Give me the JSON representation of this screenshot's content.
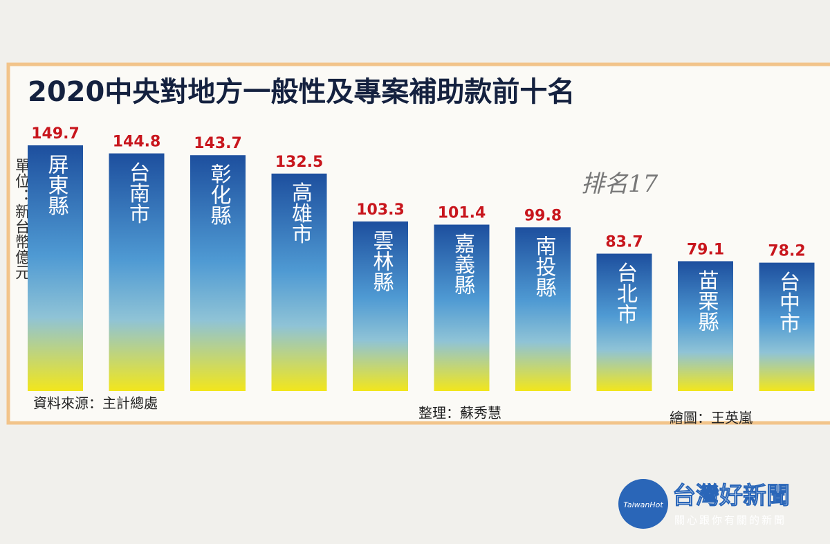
{
  "chart_data": {
    "type": "bar",
    "title": "2020中央對地方一般性及專案補助款前十名",
    "unit_label": "單位：新台幣億元",
    "categories": [
      "屏東縣",
      "台南市",
      "彰化縣",
      "高雄市",
      "雲林縣",
      "嘉義縣",
      "南投縣",
      "台北市",
      "苗栗縣",
      "台中市"
    ],
    "values": [
      149.7,
      144.8,
      143.7,
      132.5,
      103.3,
      101.4,
      99.8,
      83.7,
      79.1,
      78.2
    ],
    "bar_gradient": [
      "#1d4f9e",
      "#4f9ad3",
      "#8fc3d6",
      "#f2e61c"
    ],
    "value_label_color": "#c8161d",
    "source": "資料來源：主計總處",
    "editor": "整理：蘇秀慧",
    "illustrator": "繪圖：王英嵐",
    "handwritten_note": "排名17",
    "watermark": {
      "logo": "TaiwanHot",
      "name": "台灣好新聞",
      "slogan": "關心跟你有關的新聞"
    }
  }
}
